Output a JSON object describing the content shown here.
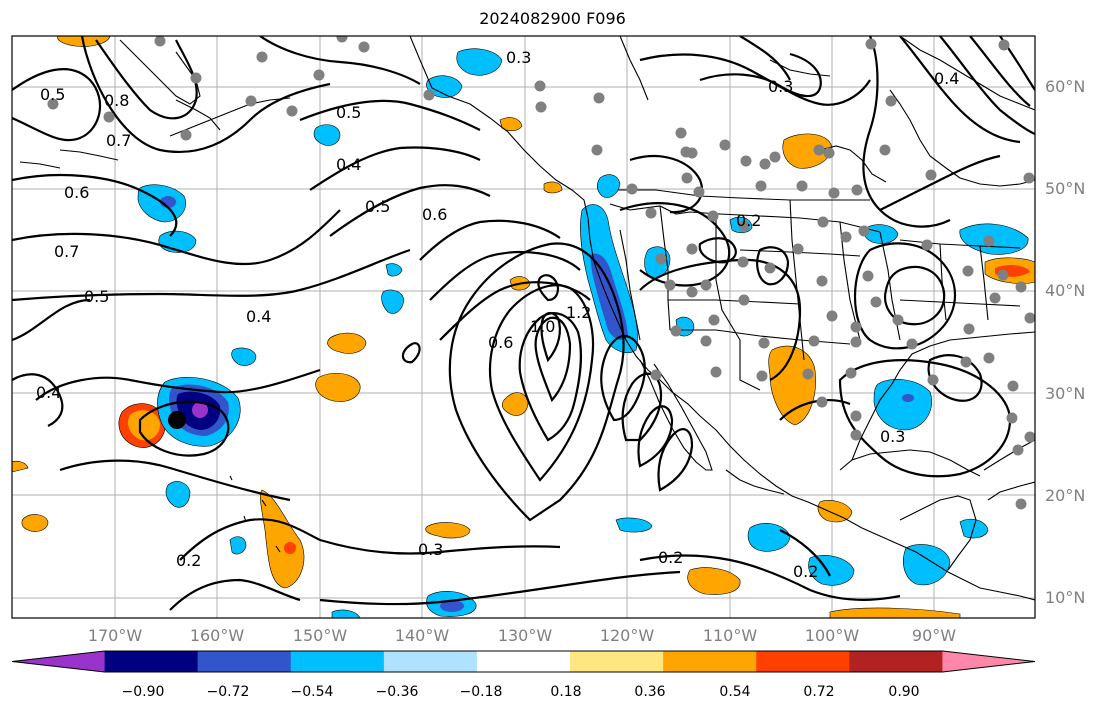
{
  "title": "2024082900 F096",
  "lat_labels": [
    "60°N",
    "50°N",
    "40°N",
    "30°N",
    "20°N",
    "10°N"
  ],
  "lon_labels": [
    "170°W",
    "160°W",
    "150°W",
    "140°W",
    "130°W",
    "120°W",
    "110°W",
    "100°W",
    "90°W"
  ],
  "colorbar": {
    "ticks": [
      "−0.90",
      "−0.72",
      "−0.54",
      "−0.36",
      "−0.18",
      "0.18",
      "0.36",
      "0.54",
      "0.72",
      "0.90"
    ],
    "colors": [
      "#9933cc",
      "#000080",
      "#3355cc",
      "#00bfff",
      "#b0e2ff",
      "#ffffff",
      "#ffe680",
      "#ffa500",
      "#ff4000",
      "#b22222",
      "#ff88aa"
    ]
  },
  "contour_labels": [
    "0.3",
    "0.4",
    "0.5",
    "0.6",
    "0.7",
    "0.8",
    "1.0",
    "1.2",
    "0.2"
  ],
  "colors": {
    "land": "#000000",
    "grid": "#b0b0b0",
    "station": "#808080",
    "contour": "#000000"
  }
}
